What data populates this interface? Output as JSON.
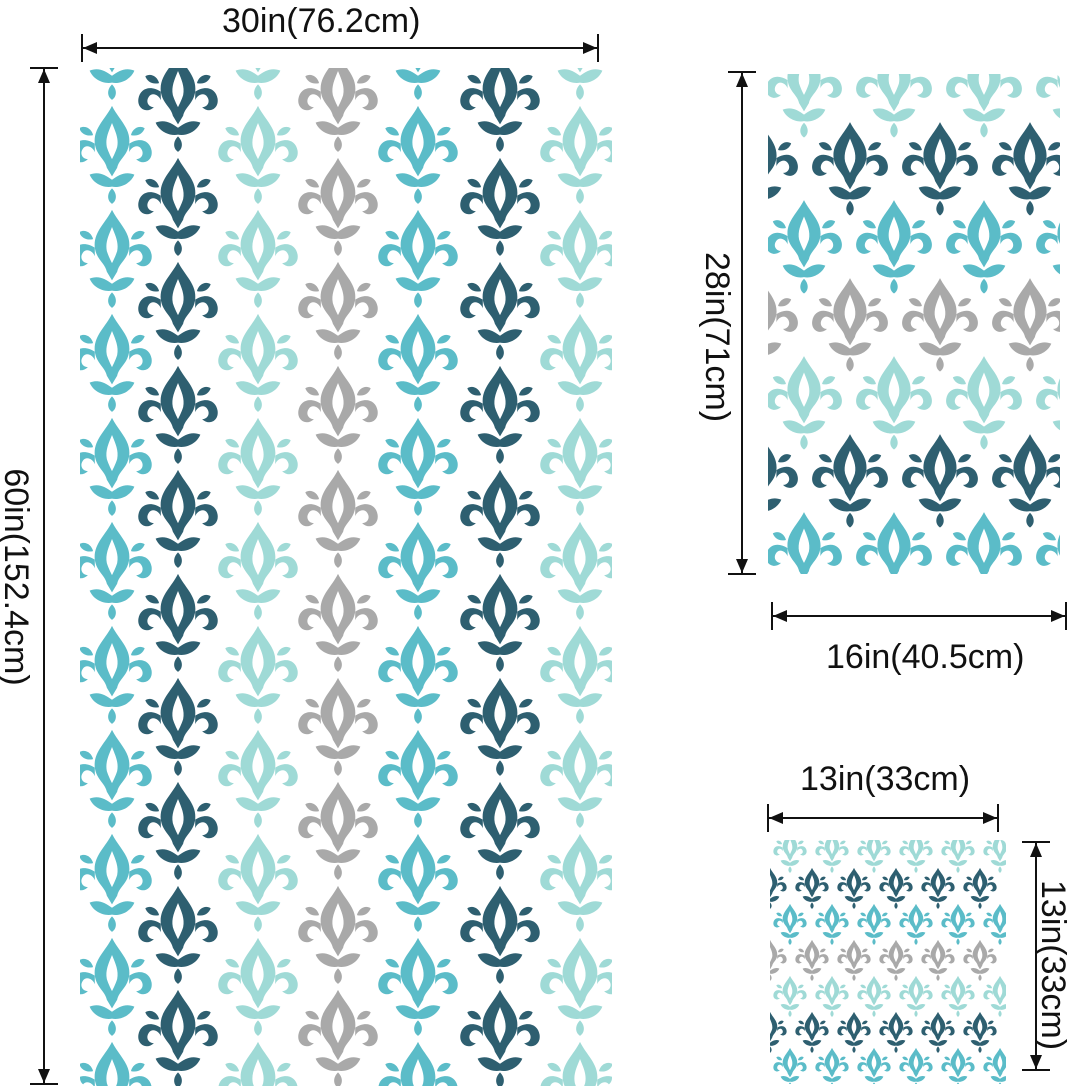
{
  "colors": {
    "dark_teal": "#2e5f70",
    "turquoise": "#5bbcc8",
    "light_aqua": "#9fdad6",
    "gray": "#a9a9a9",
    "background": "#ffffff",
    "line": "#111111"
  },
  "icons": [
    "damask-motif",
    "double-arrow"
  ],
  "towels": {
    "bath": {
      "width_label": "30in(76.2cm)",
      "height_label": "60in(152.4cm)"
    },
    "hand": {
      "width_label": "16in(40.5cm)",
      "height_label": "28in(71cm)"
    },
    "wash": {
      "width_label": "13in(33cm)",
      "height_label": "13in(33cm)"
    }
  }
}
